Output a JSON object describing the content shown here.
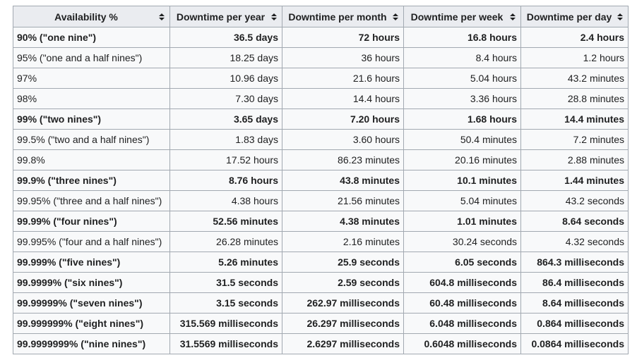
{
  "table": {
    "headers": [
      "Availability %",
      "Downtime per year",
      "Downtime per month",
      "Downtime per week",
      "Downtime per day"
    ],
    "rows": [
      {
        "bold": true,
        "cells": [
          "90% (\"one nine\")",
          "36.5 days",
          "72 hours",
          "16.8 hours",
          "2.4 hours"
        ]
      },
      {
        "bold": false,
        "cells": [
          "95% (\"one and a half nines\")",
          "18.25 days",
          "36 hours",
          "8.4 hours",
          "1.2 hours"
        ]
      },
      {
        "bold": false,
        "cells": [
          "97%",
          "10.96 days",
          "21.6 hours",
          "5.04 hours",
          "43.2 minutes"
        ]
      },
      {
        "bold": false,
        "cells": [
          "98%",
          "7.30 days",
          "14.4 hours",
          "3.36 hours",
          "28.8 minutes"
        ]
      },
      {
        "bold": true,
        "cells": [
          "99% (\"two nines\")",
          "3.65 days",
          "7.20 hours",
          "1.68 hours",
          "14.4 minutes"
        ]
      },
      {
        "bold": false,
        "cells": [
          "99.5% (\"two and a half nines\")",
          "1.83 days",
          "3.60 hours",
          "50.4 minutes",
          "7.2 minutes"
        ]
      },
      {
        "bold": false,
        "cells": [
          "99.8%",
          "17.52 hours",
          "86.23 minutes",
          "20.16 minutes",
          "2.88 minutes"
        ]
      },
      {
        "bold": true,
        "cells": [
          "99.9% (\"three nines\")",
          "8.76 hours",
          "43.8 minutes",
          "10.1 minutes",
          "1.44 minutes"
        ]
      },
      {
        "bold": false,
        "cells": [
          "99.95% (\"three and a half nines\")",
          "4.38 hours",
          "21.56 minutes",
          "5.04 minutes",
          "43.2 seconds"
        ]
      },
      {
        "bold": true,
        "cells": [
          "99.99% (\"four nines\")",
          "52.56 minutes",
          "4.38 minutes",
          "1.01 minutes",
          "8.64 seconds"
        ]
      },
      {
        "bold": false,
        "cells": [
          "99.995% (\"four and a half nines\")",
          "26.28 minutes",
          "2.16 minutes",
          "30.24 seconds",
          "4.32 seconds"
        ]
      },
      {
        "bold": true,
        "cells": [
          "99.999% (\"five nines\")",
          "5.26 minutes",
          "25.9 seconds",
          "6.05 seconds",
          "864.3 milliseconds"
        ]
      },
      {
        "bold": true,
        "cells": [
          "99.9999% (\"six nines\")",
          "31.5 seconds",
          "2.59 seconds",
          "604.8 milliseconds",
          "86.4 milliseconds"
        ]
      },
      {
        "bold": true,
        "cells": [
          "99.99999% (\"seven nines\")",
          "3.15 seconds",
          "262.97 milliseconds",
          "60.48 milliseconds",
          "8.64 milliseconds"
        ]
      },
      {
        "bold": true,
        "cells": [
          "99.999999% (\"eight nines\")",
          "315.569 milliseconds",
          "26.297 milliseconds",
          "6.048 milliseconds",
          "0.864 milliseconds"
        ]
      },
      {
        "bold": true,
        "cells": [
          "99.9999999% (\"nine nines\")",
          "31.5569 milliseconds",
          "2.6297 milliseconds",
          "0.6048 milliseconds",
          "0.0864 milliseconds"
        ]
      }
    ]
  }
}
